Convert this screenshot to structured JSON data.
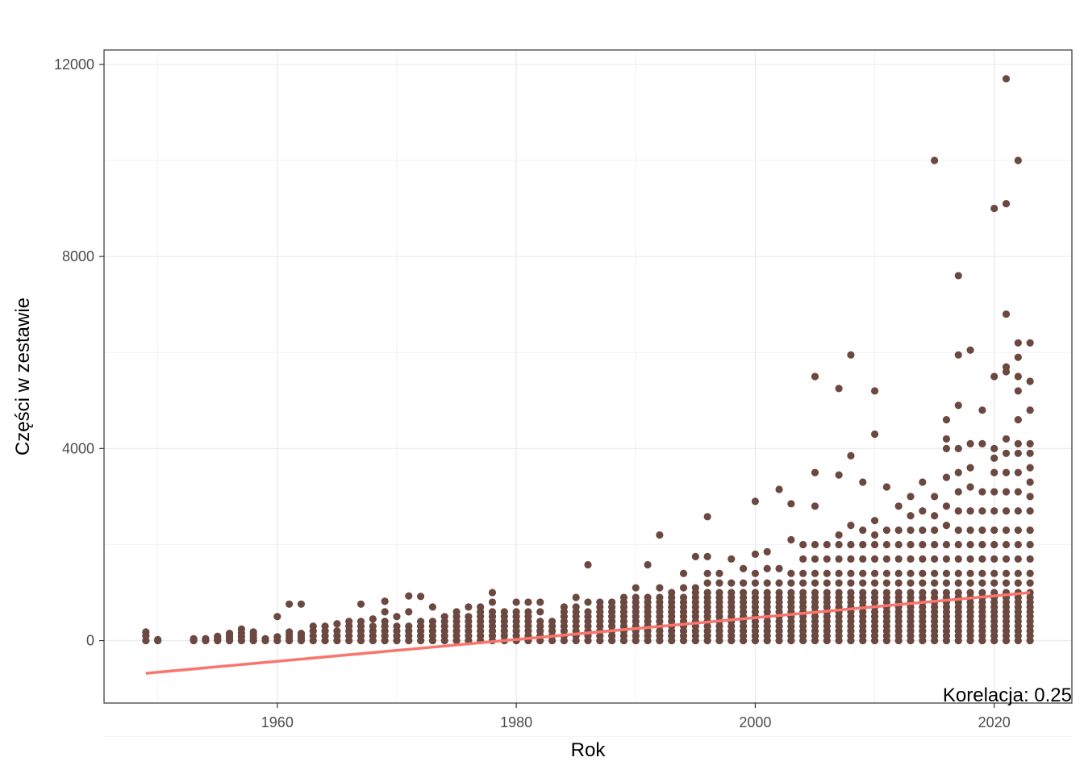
{
  "chart_data": {
    "type": "scatter",
    "title": "",
    "xlabel": "Rok",
    "ylabel": "Części w zestawie",
    "xlim": [
      1945.5,
      2026.5
    ],
    "ylim": [
      -1300,
      12300
    ],
    "x_ticks": [
      1960,
      1980,
      2000,
      2020
    ],
    "x_tick_labels": [
      "1960",
      "1980",
      "2000",
      "2020"
    ],
    "y_ticks": [
      0,
      4000,
      8000,
      12000
    ],
    "y_tick_labels": [
      "0",
      "4000",
      "8000",
      "12000"
    ],
    "grid": true,
    "legend": "none",
    "point_color": "#6b4840",
    "trend_color": "#f8766d",
    "trendline": {
      "x": [
        1949,
        2023
      ],
      "y": [
        -680,
        1000
      ]
    },
    "annotation": "Korelacja:  0.25",
    "points_by_year": [
      {
        "x": 1949,
        "y": [
          0,
          100,
          180
        ]
      },
      {
        "x": 1950,
        "y": [
          0,
          20
        ]
      },
      {
        "x": 1953,
        "y": [
          0,
          20,
          40
        ]
      },
      {
        "x": 1954,
        "y": [
          0,
          20,
          40
        ]
      },
      {
        "x": 1955,
        "y": [
          0,
          30,
          60,
          90
        ]
      },
      {
        "x": 1956,
        "y": [
          0,
          50,
          100,
          150
        ]
      },
      {
        "x": 1957,
        "y": [
          0,
          80,
          160,
          240
        ]
      },
      {
        "x": 1958,
        "y": [
          0,
          60,
          120,
          180
        ]
      },
      {
        "x": 1959,
        "y": [
          0,
          40
        ]
      },
      {
        "x": 1960,
        "y": [
          0,
          80,
          500
        ]
      },
      {
        "x": 1961,
        "y": [
          0,
          60,
          120,
          180,
          760
        ]
      },
      {
        "x": 1962,
        "y": [
          0,
          50,
          100,
          150,
          760
        ]
      },
      {
        "x": 1963,
        "y": [
          0,
          100,
          200,
          300
        ]
      },
      {
        "x": 1964,
        "y": [
          0,
          100,
          200,
          300
        ]
      },
      {
        "x": 1965,
        "y": [
          0,
          100,
          200,
          350
        ]
      },
      {
        "x": 1966,
        "y": [
          0,
          100,
          200,
          300,
          400
        ]
      },
      {
        "x": 1967,
        "y": [
          0,
          100,
          200,
          300,
          400,
          760
        ]
      },
      {
        "x": 1968,
        "y": [
          0,
          100,
          200,
          300,
          450
        ]
      },
      {
        "x": 1969,
        "y": [
          0,
          100,
          200,
          300,
          400,
          600,
          820
        ]
      },
      {
        "x": 1970,
        "y": [
          0,
          100,
          200,
          300,
          500
        ]
      },
      {
        "x": 1971,
        "y": [
          0,
          100,
          200,
          300,
          600,
          930
        ]
      },
      {
        "x": 1972,
        "y": [
          0,
          100,
          200,
          300,
          400,
          920
        ]
      },
      {
        "x": 1973,
        "y": [
          0,
          100,
          200,
          300,
          400,
          700
        ]
      },
      {
        "x": 1974,
        "y": [
          0,
          100,
          200,
          300,
          400,
          500
        ]
      },
      {
        "x": 1975,
        "y": [
          0,
          100,
          200,
          300,
          400,
          500,
          600
        ]
      },
      {
        "x": 1976,
        "y": [
          0,
          100,
          200,
          300,
          400,
          500,
          700
        ]
      },
      {
        "x": 1977,
        "y": [
          0,
          100,
          200,
          300,
          400,
          500,
          600,
          700
        ]
      },
      {
        "x": 1978,
        "y": [
          0,
          100,
          200,
          300,
          400,
          500,
          600,
          800,
          1000
        ]
      },
      {
        "x": 1979,
        "y": [
          0,
          100,
          200,
          300,
          400,
          500,
          600
        ]
      },
      {
        "x": 1980,
        "y": [
          0,
          100,
          200,
          300,
          400,
          500,
          600,
          800
        ]
      },
      {
        "x": 1981,
        "y": [
          0,
          100,
          200,
          300,
          400,
          500,
          600,
          800
        ]
      },
      {
        "x": 1982,
        "y": [
          0,
          100,
          200,
          300,
          400,
          600,
          800
        ]
      },
      {
        "x": 1983,
        "y": [
          0,
          100,
          200,
          300,
          400
        ]
      },
      {
        "x": 1984,
        "y": [
          0,
          100,
          200,
          300,
          400,
          500,
          600,
          700
        ]
      },
      {
        "x": 1985,
        "y": [
          0,
          100,
          200,
          300,
          400,
          500,
          600,
          700,
          900
        ]
      },
      {
        "x": 1986,
        "y": [
          0,
          100,
          200,
          300,
          400,
          500,
          600,
          800,
          1580
        ]
      },
      {
        "x": 1987,
        "y": [
          0,
          100,
          200,
          300,
          400,
          500,
          600,
          700,
          800
        ]
      },
      {
        "x": 1988,
        "y": [
          0,
          100,
          200,
          300,
          400,
          500,
          600,
          700,
          800
        ]
      },
      {
        "x": 1989,
        "y": [
          0,
          100,
          200,
          300,
          400,
          500,
          600,
          700,
          800,
          900
        ]
      },
      {
        "x": 1990,
        "y": [
          0,
          100,
          200,
          300,
          400,
          500,
          600,
          700,
          800,
          900,
          1100
        ]
      },
      {
        "x": 1991,
        "y": [
          0,
          100,
          200,
          300,
          400,
          500,
          600,
          700,
          800,
          900,
          1580
        ]
      },
      {
        "x": 1992,
        "y": [
          0,
          100,
          200,
          300,
          400,
          500,
          600,
          700,
          800,
          900,
          1100,
          2200
        ]
      },
      {
        "x": 1993,
        "y": [
          0,
          100,
          200,
          300,
          400,
          500,
          600,
          700,
          800,
          900,
          1000
        ]
      },
      {
        "x": 1994,
        "y": [
          0,
          100,
          200,
          300,
          400,
          500,
          600,
          700,
          800,
          900,
          1100,
          1400
        ]
      },
      {
        "x": 1995,
        "y": [
          0,
          100,
          200,
          300,
          400,
          500,
          600,
          700,
          800,
          900,
          1000,
          1100,
          1750
        ]
      },
      {
        "x": 1996,
        "y": [
          0,
          100,
          200,
          300,
          400,
          500,
          600,
          700,
          800,
          900,
          1000,
          1200,
          1400,
          1750,
          2580
        ]
      },
      {
        "x": 1997,
        "y": [
          0,
          100,
          200,
          300,
          400,
          500,
          600,
          700,
          800,
          900,
          1000,
          1200,
          1400
        ]
      },
      {
        "x": 1998,
        "y": [
          0,
          100,
          200,
          300,
          400,
          500,
          600,
          700,
          800,
          900,
          1000,
          1200,
          1700
        ]
      },
      {
        "x": 1999,
        "y": [
          0,
          100,
          200,
          300,
          400,
          500,
          600,
          700,
          800,
          900,
          1000,
          1200,
          1500
        ]
      },
      {
        "x": 2000,
        "y": [
          0,
          100,
          200,
          300,
          400,
          500,
          600,
          700,
          800,
          900,
          1000,
          1200,
          1400,
          1800,
          2900
        ]
      },
      {
        "x": 2001,
        "y": [
          0,
          100,
          200,
          300,
          400,
          500,
          600,
          700,
          800,
          900,
          1000,
          1200,
          1500,
          1850
        ]
      },
      {
        "x": 2002,
        "y": [
          0,
          100,
          200,
          300,
          400,
          500,
          600,
          700,
          800,
          900,
          1000,
          1200,
          1500,
          3150
        ]
      },
      {
        "x": 2003,
        "y": [
          0,
          100,
          200,
          300,
          400,
          500,
          600,
          700,
          800,
          900,
          1000,
          1200,
          1400,
          2100,
          2850
        ]
      },
      {
        "x": 2004,
        "y": [
          0,
          100,
          200,
          300,
          400,
          500,
          600,
          700,
          800,
          900,
          1000,
          1200,
          1400,
          1700,
          2000
        ]
      },
      {
        "x": 2005,
        "y": [
          0,
          100,
          200,
          300,
          400,
          500,
          600,
          700,
          800,
          900,
          1000,
          1200,
          1400,
          1700,
          2000,
          2800,
          3500,
          5500
        ]
      },
      {
        "x": 2006,
        "y": [
          0,
          100,
          200,
          300,
          400,
          500,
          600,
          700,
          800,
          900,
          1000,
          1200,
          1400,
          1700,
          2000
        ]
      },
      {
        "x": 2007,
        "y": [
          0,
          100,
          200,
          300,
          400,
          500,
          600,
          700,
          800,
          900,
          1000,
          1200,
          1400,
          1700,
          2000,
          2200,
          3450,
          5250
        ]
      },
      {
        "x": 2008,
        "y": [
          0,
          100,
          200,
          300,
          400,
          500,
          600,
          700,
          800,
          900,
          1000,
          1200,
          1400,
          1700,
          2000,
          2400,
          3850,
          5950
        ]
      },
      {
        "x": 2009,
        "y": [
          0,
          100,
          200,
          300,
          400,
          500,
          600,
          700,
          800,
          900,
          1000,
          1200,
          1400,
          1700,
          2000,
          2300,
          3300
        ]
      },
      {
        "x": 2010,
        "y": [
          0,
          100,
          200,
          300,
          400,
          500,
          600,
          700,
          800,
          900,
          1000,
          1200,
          1400,
          1700,
          2000,
          2200,
          2500,
          4300,
          5200
        ]
      },
      {
        "x": 2011,
        "y": [
          0,
          100,
          200,
          300,
          400,
          500,
          600,
          700,
          800,
          900,
          1000,
          1200,
          1400,
          1700,
          2000,
          2300,
          3200
        ]
      },
      {
        "x": 2012,
        "y": [
          0,
          100,
          200,
          300,
          400,
          500,
          600,
          700,
          800,
          900,
          1000,
          1200,
          1400,
          1700,
          2000,
          2300,
          2800
        ]
      },
      {
        "x": 2013,
        "y": [
          0,
          100,
          200,
          300,
          400,
          500,
          600,
          700,
          800,
          900,
          1000,
          1200,
          1400,
          1700,
          2000,
          2300,
          2600,
          3000
        ]
      },
      {
        "x": 2014,
        "y": [
          0,
          100,
          200,
          300,
          400,
          500,
          600,
          700,
          800,
          900,
          1000,
          1200,
          1400,
          1700,
          2000,
          2300,
          2700,
          3300
        ]
      },
      {
        "x": 2015,
        "y": [
          0,
          100,
          200,
          300,
          400,
          500,
          600,
          700,
          800,
          900,
          1000,
          1200,
          1400,
          1700,
          2000,
          2300,
          2600,
          3000,
          10000
        ]
      },
      {
        "x": 2016,
        "y": [
          0,
          100,
          200,
          300,
          400,
          500,
          600,
          700,
          800,
          900,
          1000,
          1200,
          1400,
          1700,
          2000,
          2400,
          2800,
          3400,
          4000,
          4200,
          4600
        ]
      },
      {
        "x": 2017,
        "y": [
          0,
          100,
          200,
          300,
          400,
          500,
          600,
          700,
          800,
          900,
          1000,
          1200,
          1400,
          1700,
          2000,
          2300,
          2700,
          3100,
          3500,
          4000,
          4900,
          5950,
          7600
        ]
      },
      {
        "x": 2018,
        "y": [
          0,
          100,
          200,
          300,
          400,
          500,
          600,
          700,
          800,
          900,
          1000,
          1200,
          1400,
          1700,
          2000,
          2300,
          2700,
          3200,
          3600,
          4100,
          6050
        ]
      },
      {
        "x": 2019,
        "y": [
          0,
          100,
          200,
          300,
          400,
          500,
          600,
          700,
          800,
          900,
          1000,
          1200,
          1400,
          1700,
          2000,
          2300,
          2700,
          3100,
          4100,
          4800
        ]
      },
      {
        "x": 2020,
        "y": [
          0,
          100,
          200,
          300,
          400,
          500,
          600,
          700,
          800,
          900,
          1000,
          1200,
          1400,
          1700,
          2000,
          2300,
          2700,
          3100,
          3500,
          3800,
          4000,
          5500,
          9000
        ]
      },
      {
        "x": 2021,
        "y": [
          0,
          100,
          200,
          300,
          400,
          500,
          600,
          700,
          800,
          900,
          1000,
          1200,
          1400,
          1700,
          2000,
          2300,
          2700,
          3100,
          3500,
          3900,
          4200,
          5600,
          5700,
          6800,
          9100,
          11700
        ]
      },
      {
        "x": 2022,
        "y": [
          0,
          100,
          200,
          300,
          400,
          500,
          600,
          700,
          800,
          900,
          1000,
          1200,
          1400,
          1700,
          2000,
          2300,
          2700,
          3100,
          3500,
          3900,
          4100,
          4600,
          5200,
          5500,
          5900,
          6200,
          10000
        ]
      },
      {
        "x": 2023,
        "y": [
          0,
          100,
          200,
          300,
          400,
          500,
          600,
          700,
          800,
          900,
          1000,
          1200,
          1400,
          1700,
          2000,
          2300,
          2700,
          3000,
          3300,
          3600,
          3900,
          4100,
          4800,
          5400,
          6200
        ]
      }
    ]
  }
}
